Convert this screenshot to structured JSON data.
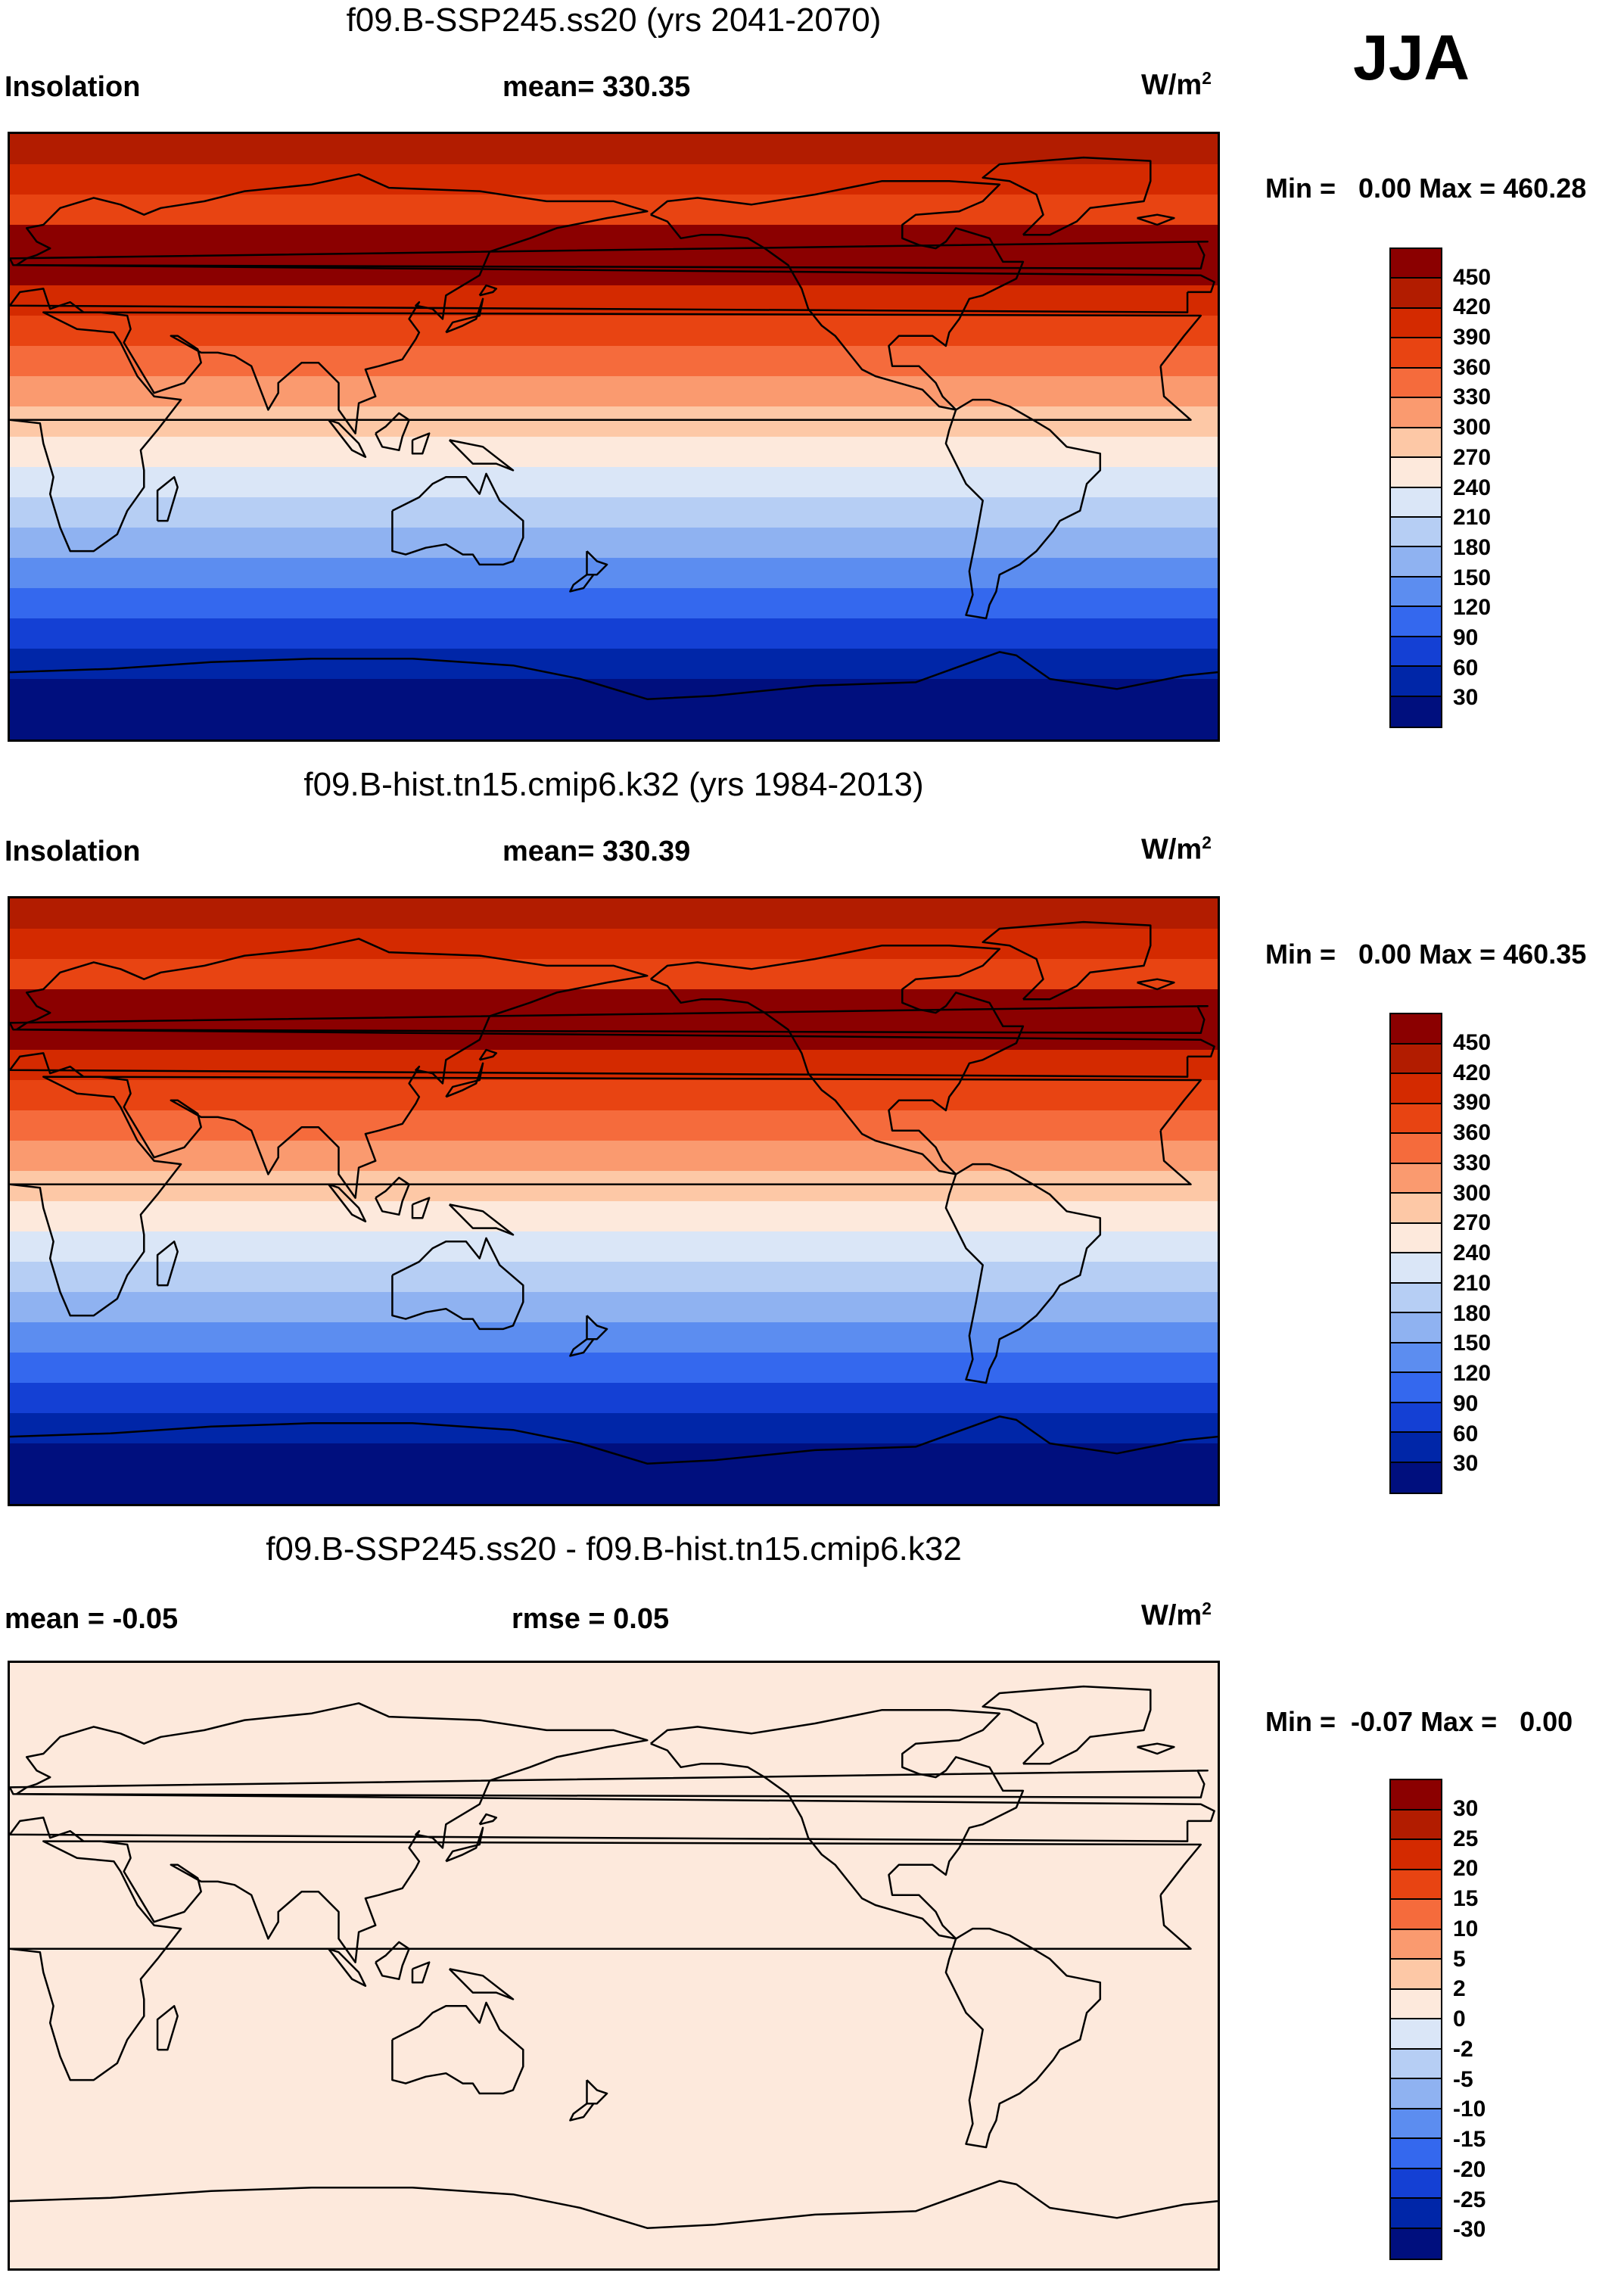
{
  "season": "JJA",
  "panels": [
    {
      "title": "f09.B-SSP245.ss20 (yrs 2041-2070)",
      "left_label": "Insolation",
      "center_label": "mean= 330.35",
      "units_base": "W/m",
      "units_sup": "2",
      "minmax": "Min =   0.00 Max = 460.28",
      "colorbar_labels": [
        "450",
        "420",
        "390",
        "360",
        "330",
        "300",
        "270",
        "240",
        "210",
        "180",
        "150",
        "120",
        "90",
        "60",
        "30"
      ],
      "colorbar_colors": [
        "#8b0000",
        "#b21c00",
        "#d42a00",
        "#e84412",
        "#f56b3c",
        "#fa9a6f",
        "#fdc8a6",
        "#fde9dc",
        "#dae6f7",
        "#b6cef4",
        "#8fb2f1",
        "#5c8df0",
        "#3468ee",
        "#1440d4",
        "#0026a8",
        "#000f7e"
      ]
    },
    {
      "title": "f09.B-hist.tn15.cmip6.k32 (yrs 1984-2013)",
      "left_label": "Insolation",
      "center_label": "mean= 330.39",
      "units_base": "W/m",
      "units_sup": "2",
      "minmax": "Min =   0.00 Max = 460.35",
      "colorbar_labels": [
        "450",
        "420",
        "390",
        "360",
        "330",
        "300",
        "270",
        "240",
        "210",
        "180",
        "150",
        "120",
        "90",
        "60",
        "30"
      ],
      "colorbar_colors": [
        "#8b0000",
        "#b21c00",
        "#d42a00",
        "#e84412",
        "#f56b3c",
        "#fa9a6f",
        "#fdc8a6",
        "#fde9dc",
        "#dae6f7",
        "#b6cef4",
        "#8fb2f1",
        "#5c8df0",
        "#3468ee",
        "#1440d4",
        "#0026a8",
        "#000f7e"
      ]
    },
    {
      "title": "f09.B-SSP245.ss20 - f09.B-hist.tn15.cmip6.k32",
      "left_label": "mean =  -0.05",
      "center_label": "rmse =   0.05",
      "units_base": "W/m",
      "units_sup": "2",
      "minmax": "Min =  -0.07 Max =   0.00",
      "colorbar_labels": [
        "30",
        "25",
        "20",
        "15",
        "10",
        "5",
        "2",
        "0",
        "-2",
        "-5",
        "-10",
        "-15",
        "-20",
        "-25",
        "-30"
      ],
      "colorbar_colors": [
        "#8b0000",
        "#b21c00",
        "#d42a00",
        "#e84412",
        "#f56b3c",
        "#fa9a6f",
        "#fdc8a6",
        "#fde9dc",
        "#dae6f7",
        "#b6cef4",
        "#8fb2f1",
        "#5c8df0",
        "#3468ee",
        "#1440d4",
        "#0026a8",
        "#000f7e"
      ],
      "fill_color": "#fde9dc"
    }
  ],
  "zonal_band_colors_top_to_bottom": [
    "#b21c00",
    "#d42a00",
    "#e84412",
    "#8b0000",
    "#8b0000",
    "#d42a00",
    "#e84412",
    "#f56b3c",
    "#fa9a6f",
    "#fdc8a6",
    "#fde9dc",
    "#dae6f7",
    "#b6cef4",
    "#8fb2f1",
    "#5c8df0",
    "#3468ee",
    "#1440d4",
    "#0026a8",
    "#000f7e",
    "#000f7e"
  ]
}
